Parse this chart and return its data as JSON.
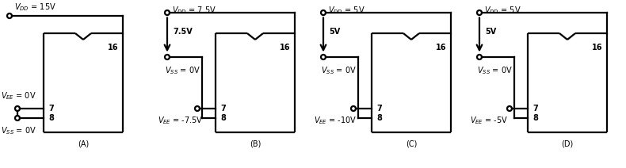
{
  "panels": [
    {
      "label": "(A)",
      "vdd_text": "$V_{DD}$ = 15V",
      "vss_text": "$V_{SS}$ = 0V",
      "vee_text": "$V_{EE}$ = 0V",
      "has_arrow": false,
      "arrow_text": null
    },
    {
      "label": "(B)",
      "vdd_text": "$V_{DD}$ = 7.5V",
      "vss_text": "$V_{SS}$ = 0V",
      "vee_text": "$V_{EE}$ = -7.5V",
      "has_arrow": true,
      "arrow_text": "7.5V"
    },
    {
      "label": "(C)",
      "vdd_text": "$V_{DD}$ = 5V",
      "vss_text": "$V_{SS}$ = 0V",
      "vee_text": "$V_{EE}$ = -10V",
      "has_arrow": true,
      "arrow_text": "5V"
    },
    {
      "label": "(D)",
      "vdd_text": "$V_{DD}$ = 5V",
      "vss_text": "$V_{SS}$ = 0V",
      "vee_text": "$V_{EE}$ = -5V",
      "has_arrow": true,
      "arrow_text": "5V"
    }
  ],
  "line_color": "black",
  "bg_color": "white",
  "font_size": 7.0
}
